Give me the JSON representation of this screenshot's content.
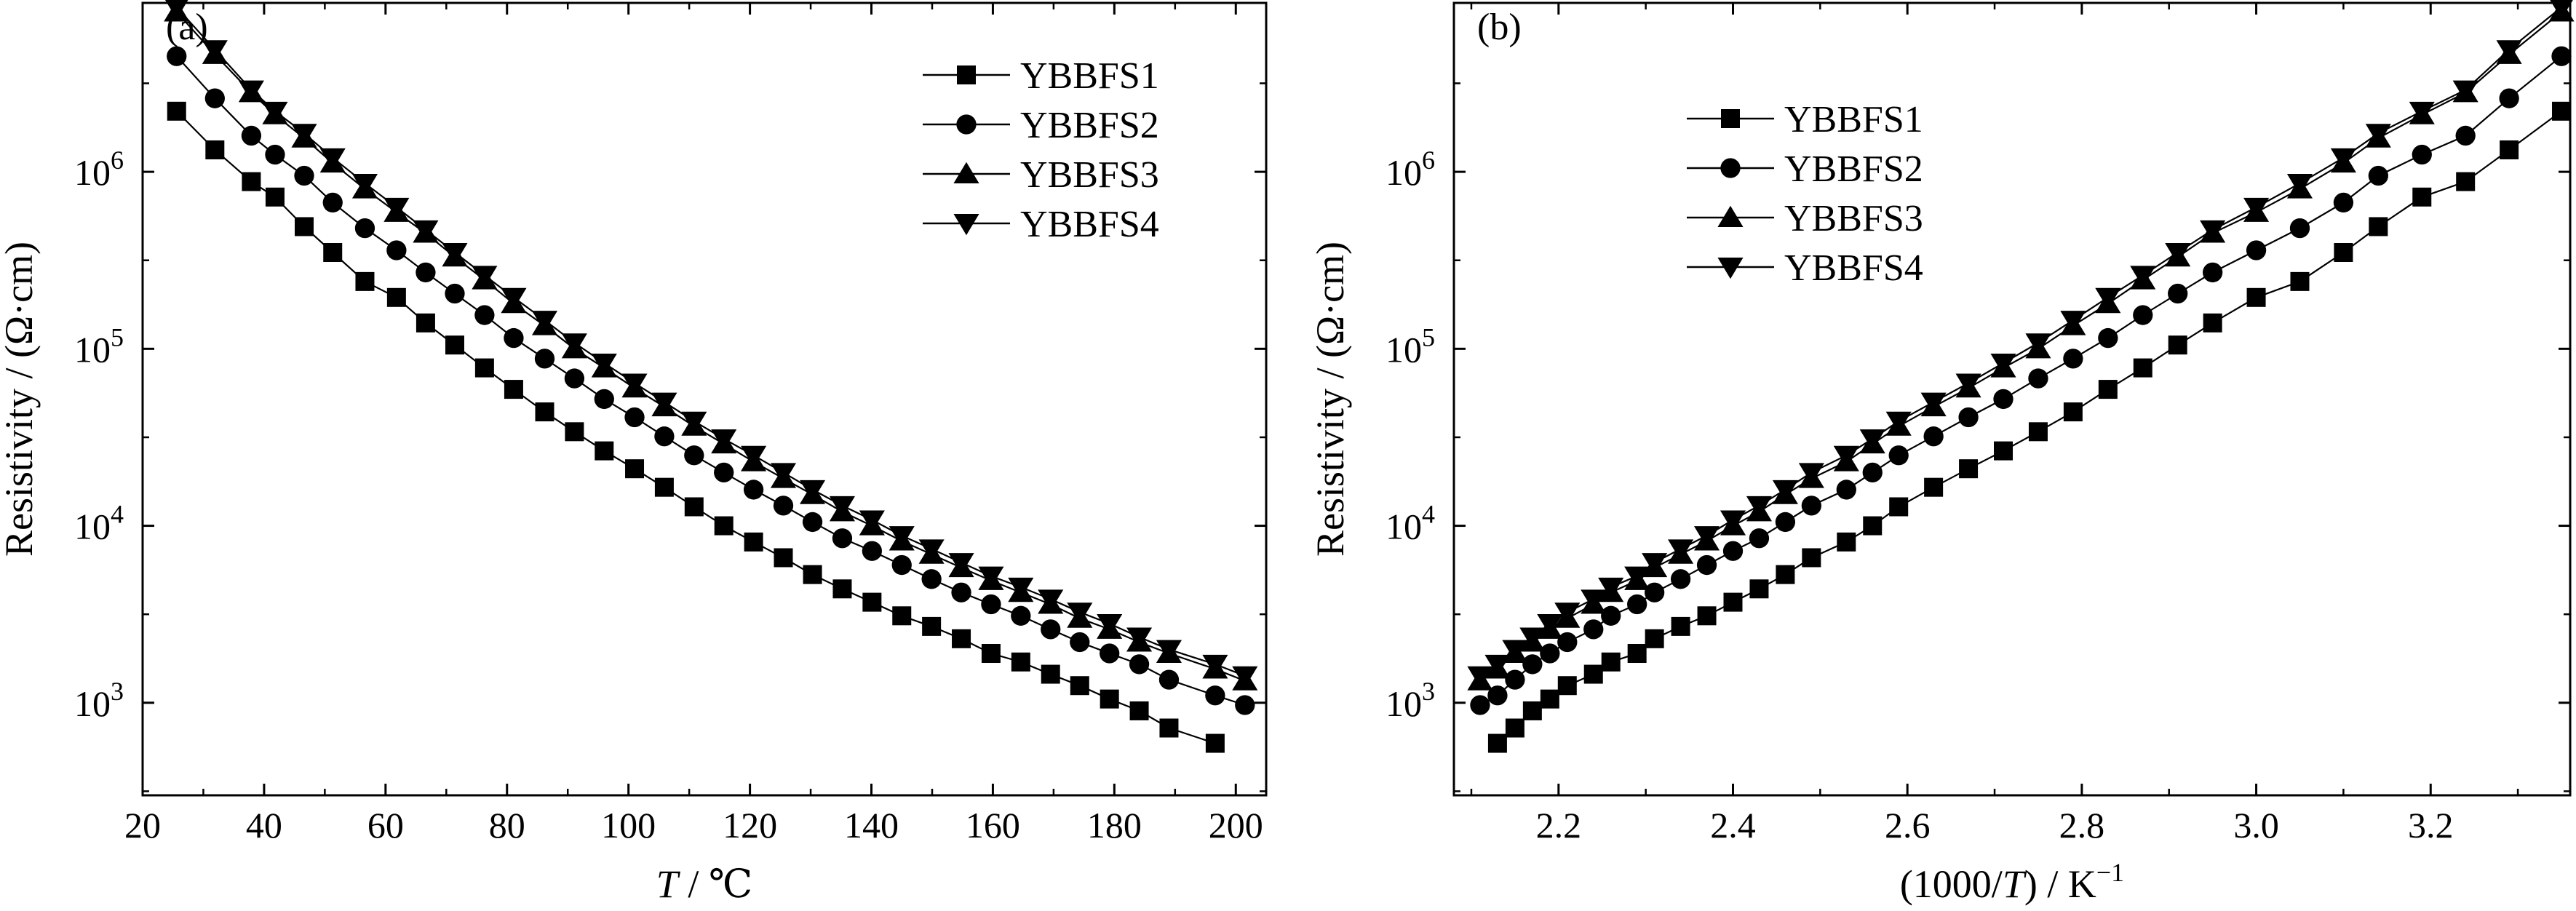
{
  "chart_data": [
    {
      "type": "line",
      "panel_label": "(a)",
      "xlabel_italic": "T",
      "xlabel_rest": " / ℃",
      "ylabel": "Resistivity / (Ω·cm)",
      "xlim": [
        20,
        205
      ],
      "ylim": [
        300,
        9000000
      ],
      "yscale": "log",
      "xticks": [
        20,
        40,
        60,
        80,
        100,
        120,
        140,
        160,
        180,
        200
      ],
      "xtick_labels": [
        "20",
        "40",
        "60",
        "80",
        "100",
        "120",
        "140",
        "160",
        "180",
        "200"
      ],
      "yticks": [
        1000,
        10000,
        100000,
        1000000
      ],
      "ytick_exponents": [
        "3",
        "4",
        "5",
        "6"
      ],
      "ytick_base": "10",
      "legend_position": "top-right",
      "series": [
        {
          "name": "YBBFS1",
          "marker": "square",
          "x": [
            25.6,
            31.9,
            37.9,
            41.8,
            46.6,
            51.3,
            56.6,
            61.8,
            66.6,
            71.4,
            76.3,
            81.1,
            86.2,
            91.1,
            96.0,
            101.0,
            105.9,
            110.8,
            115.7,
            120.6,
            125.5,
            130.3,
            135.2,
            140.1,
            145.0,
            149.9,
            154.8,
            159.7,
            164.6,
            169.5,
            174.3,
            179.2,
            184.1,
            189.0,
            196.6
          ],
          "y": [
            2200000,
            1330000,
            880000,
            720000,
            490000,
            350000,
            240000,
            195000,
            140000,
            105000,
            78000,
            59000,
            44000,
            34000,
            26500,
            21000,
            16500,
            12800,
            10000,
            8100,
            6600,
            5300,
            4400,
            3700,
            3100,
            2700,
            2300,
            1900,
            1700,
            1450,
            1250,
            1050,
            900,
            720,
            590
          ]
        },
        {
          "name": "YBBFS2",
          "marker": "circle",
          "x": [
            25.6,
            31.9,
            37.9,
            41.8,
            46.6,
            51.3,
            56.6,
            61.8,
            66.6,
            71.4,
            76.3,
            81.1,
            86.2,
            91.1,
            96.0,
            101.0,
            105.9,
            110.8,
            115.7,
            120.6,
            125.5,
            130.3,
            135.2,
            140.1,
            145.0,
            149.9,
            154.8,
            159.7,
            164.6,
            169.5,
            174.3,
            179.2,
            184.1,
            189.0,
            196.6,
            201.5
          ],
          "y": [
            4500000,
            2600000,
            1600000,
            1250000,
            950000,
            670000,
            480000,
            360000,
            270000,
            205000,
            155000,
            115000,
            88000,
            68000,
            52000,
            41000,
            32000,
            25000,
            20000,
            16000,
            13000,
            10500,
            8500,
            7200,
            6000,
            5000,
            4200,
            3600,
            3100,
            2600,
            2200,
            1900,
            1650,
            1350,
            1100,
            970
          ]
        },
        {
          "name": "YBBFS3",
          "marker": "triangle-up",
          "x": [
            25.6,
            31.9,
            37.9,
            41.8,
            46.6,
            51.3,
            56.6,
            61.8,
            66.6,
            71.4,
            76.3,
            81.1,
            86.2,
            91.1,
            96.0,
            101.0,
            105.9,
            110.8,
            115.7,
            120.6,
            125.5,
            130.3,
            135.2,
            140.1,
            145.0,
            149.9,
            154.8,
            159.7,
            164.6,
            169.5,
            174.3,
            179.2,
            184.1,
            189.0,
            196.6,
            201.5
          ],
          "y": [
            8000000,
            4600000,
            2800000,
            2100000,
            1550000,
            1120000,
            800000,
            590000,
            450000,
            330000,
            245000,
            180000,
            135000,
            100000,
            78000,
            60000,
            47000,
            36500,
            29000,
            23000,
            18500,
            15000,
            12000,
            10000,
            8200,
            6900,
            5800,
            4900,
            4200,
            3600,
            3000,
            2600,
            2200,
            1900,
            1550,
            1330
          ]
        },
        {
          "name": "YBBFS4",
          "marker": "triangle-down",
          "x": [
            25.6,
            31.9,
            37.9,
            41.8,
            46.6,
            51.3,
            56.6,
            61.8,
            66.6,
            71.4,
            76.3,
            81.1,
            86.2,
            91.1,
            96.0,
            101.0,
            105.9,
            110.8,
            115.7,
            120.6,
            125.5,
            130.3,
            135.2,
            140.1,
            145.0,
            149.9,
            154.8,
            159.7,
            164.6,
            169.5,
            174.3,
            179.2,
            184.1,
            189.0,
            196.6,
            201.5
          ],
          "y": [
            8500000,
            4900000,
            2900000,
            2200000,
            1650000,
            1200000,
            860000,
            630000,
            470000,
            350000,
            260000,
            195000,
            145000,
            108000,
            83000,
            64000,
            50000,
            39000,
            31000,
            25000,
            20000,
            16000,
            13000,
            10800,
            8800,
            7400,
            6200,
            5200,
            4500,
            3850,
            3250,
            2800,
            2350,
            2000,
            1650,
            1420
          ]
        }
      ]
    },
    {
      "type": "line",
      "panel_label": "(b)",
      "xlabel_pre": "(1000/",
      "xlabel_italic": "T",
      "xlabel_post": ") / K",
      "xlabel_sup": "−1",
      "ylabel": "Resistivity / (Ω·cm)",
      "xlim": [
        2.08,
        3.36
      ],
      "ylim": [
        300,
        9000000
      ],
      "yscale": "log",
      "xticks": [
        2.2,
        2.4,
        2.6,
        2.8,
        3.0,
        3.2
      ],
      "xtick_labels": [
        "2.2",
        "2.4",
        "2.6",
        "2.8",
        "3.0",
        "3.2"
      ],
      "yticks": [
        1000,
        10000,
        100000,
        1000000
      ],
      "ytick_exponents": [
        "3",
        "4",
        "5",
        "6"
      ],
      "ytick_base": "10",
      "legend_position": "top-left",
      "series": [
        {
          "name": "YBBFS1",
          "marker": "square",
          "x": [
            2.13,
            2.15,
            2.17,
            2.19,
            2.21,
            2.24,
            2.26,
            2.29,
            2.31,
            2.34,
            2.37,
            2.4,
            2.43,
            2.46,
            2.49,
            2.53,
            2.56,
            2.59,
            2.63,
            2.67,
            2.71,
            2.75,
            2.79,
            2.83,
            2.87,
            2.91,
            2.95,
            3.0,
            3.05,
            3.1,
            3.14,
            3.19,
            3.24,
            3.29,
            3.35
          ],
          "y": [
            590,
            720,
            900,
            1050,
            1250,
            1450,
            1700,
            1900,
            2300,
            2700,
            3100,
            3700,
            4400,
            5300,
            6600,
            8100,
            10000,
            12800,
            16500,
            21000,
            26500,
            34000,
            44000,
            59000,
            78000,
            105000,
            140000,
            195000,
            240000,
            350000,
            490000,
            720000,
            880000,
            1330000,
            2200000
          ]
        },
        {
          "name": "YBBFS2",
          "marker": "circle",
          "x": [
            2.11,
            2.13,
            2.15,
            2.17,
            2.19,
            2.21,
            2.24,
            2.26,
            2.29,
            2.31,
            2.34,
            2.37,
            2.4,
            2.43,
            2.46,
            2.49,
            2.53,
            2.56,
            2.59,
            2.63,
            2.67,
            2.71,
            2.75,
            2.79,
            2.83,
            2.87,
            2.91,
            2.95,
            3.0,
            3.05,
            3.1,
            3.14,
            3.19,
            3.24,
            3.29,
            3.35
          ],
          "y": [
            970,
            1100,
            1350,
            1650,
            1900,
            2200,
            2600,
            3100,
            3600,
            4200,
            5000,
            6000,
            7200,
            8500,
            10500,
            13000,
            16000,
            20000,
            25000,
            32000,
            41000,
            52000,
            68000,
            88000,
            115000,
            155000,
            205000,
            270000,
            360000,
            480000,
            670000,
            950000,
            1250000,
            1600000,
            2600000,
            4500000
          ]
        },
        {
          "name": "YBBFS3",
          "marker": "triangle-up",
          "x": [
            2.11,
            2.13,
            2.15,
            2.17,
            2.19,
            2.21,
            2.24,
            2.26,
            2.29,
            2.31,
            2.34,
            2.37,
            2.4,
            2.43,
            2.46,
            2.49,
            2.53,
            2.56,
            2.59,
            2.63,
            2.67,
            2.71,
            2.75,
            2.79,
            2.83,
            2.87,
            2.91,
            2.95,
            3.0,
            3.05,
            3.1,
            3.14,
            3.19,
            3.24,
            3.29,
            3.35
          ],
          "y": [
            1330,
            1550,
            1900,
            2200,
            2600,
            3000,
            3600,
            4200,
            4900,
            5800,
            6900,
            8200,
            10000,
            12000,
            15000,
            18500,
            23000,
            29000,
            36500,
            47000,
            60000,
            78000,
            100000,
            135000,
            180000,
            245000,
            330000,
            450000,
            590000,
            800000,
            1120000,
            1550000,
            2100000,
            2800000,
            4600000,
            8000000
          ]
        },
        {
          "name": "YBBFS4",
          "marker": "triangle-down",
          "x": [
            2.11,
            2.13,
            2.15,
            2.17,
            2.19,
            2.21,
            2.24,
            2.26,
            2.29,
            2.31,
            2.34,
            2.37,
            2.4,
            2.43,
            2.46,
            2.49,
            2.53,
            2.56,
            2.59,
            2.63,
            2.67,
            2.71,
            2.75,
            2.79,
            2.83,
            2.87,
            2.91,
            2.95,
            3.0,
            3.05,
            3.1,
            3.14,
            3.19,
            3.24,
            3.29,
            3.35
          ],
          "y": [
            1420,
            1650,
            2000,
            2350,
            2800,
            3250,
            3850,
            4500,
            5200,
            6200,
            7400,
            8800,
            10800,
            13000,
            16000,
            20000,
            25000,
            31000,
            39000,
            50000,
            64000,
            83000,
            108000,
            145000,
            195000,
            260000,
            350000,
            470000,
            630000,
            860000,
            1200000,
            1650000,
            2200000,
            2900000,
            4900000,
            8500000
          ]
        }
      ]
    }
  ]
}
